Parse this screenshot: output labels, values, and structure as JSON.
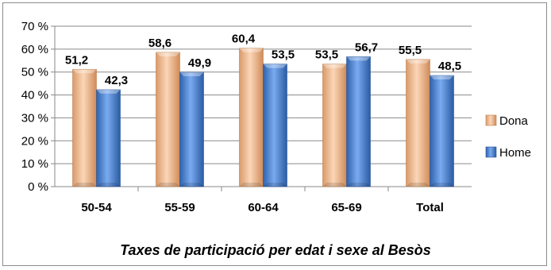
{
  "chart_data": {
    "type": "bar",
    "title": "Taxes de participació per edat i sexe al Besòs",
    "categories": [
      "50-54",
      "55-59",
      "60-64",
      "65-69",
      "Total"
    ],
    "series": [
      {
        "name": "Dona",
        "values": [
          51.2,
          58.6,
          60.4,
          53.5,
          55.5
        ],
        "labels": [
          "51,2",
          "58,6",
          "60,4",
          "53,5",
          "55,5"
        ],
        "color": "#f2b98d"
      },
      {
        "name": "Home",
        "values": [
          42.3,
          49.9,
          53.5,
          56.7,
          48.5
        ],
        "labels": [
          "42,3",
          "49,9",
          "53,5",
          "56,7",
          "48,5"
        ],
        "color": "#4f86d0"
      }
    ],
    "y_ticks": [
      "0 %",
      "10 %",
      "20 %",
      "30 %",
      "40 %",
      "50 %",
      "60 %",
      "70 %"
    ],
    "ylim": [
      0,
      70
    ],
    "ylabel": "",
    "xlabel": "",
    "legend_position": "right",
    "grid": true
  }
}
